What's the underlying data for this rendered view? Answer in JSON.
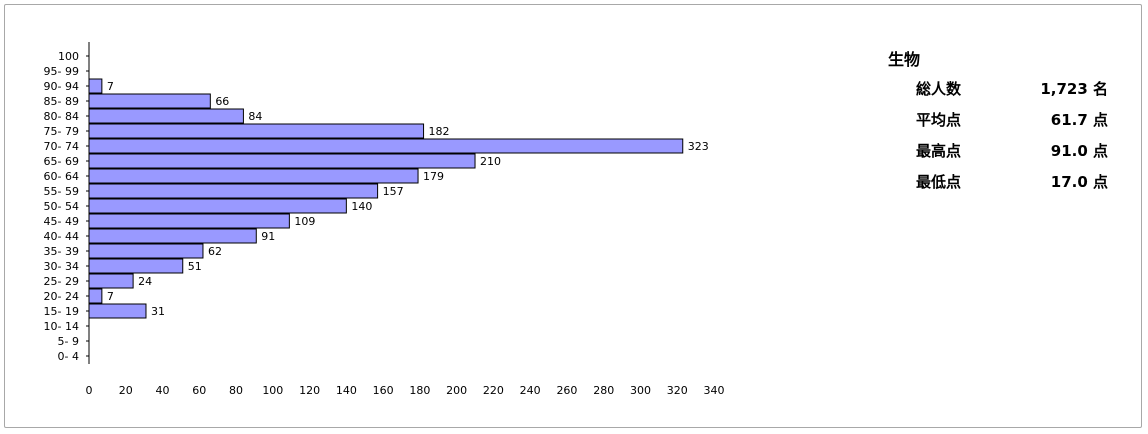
{
  "chart_data": {
    "type": "bar",
    "orientation": "horizontal",
    "categories": [
      "100",
      "95- 99",
      "90- 94",
      "85- 89",
      "80- 84",
      "75- 79",
      "70- 74",
      "65- 69",
      "60- 64",
      "55- 59",
      "50- 54",
      "45- 49",
      "40- 44",
      "35- 39",
      "30- 34",
      "25- 29",
      "20- 24",
      "15- 19",
      "10- 14",
      "5- 9",
      "0- 4"
    ],
    "values": [
      0,
      0,
      7,
      66,
      84,
      182,
      323,
      210,
      179,
      157,
      140,
      109,
      91,
      62,
      51,
      24,
      7,
      31,
      0,
      0,
      0
    ],
    "data_labels": [
      "",
      "",
      "7",
      "66",
      "84",
      "182",
      "323",
      "210",
      "179",
      "157",
      "140",
      "109",
      "91",
      "62",
      "51",
      "24",
      "7",
      "31",
      "",
      "",
      ""
    ],
    "xlim": [
      0,
      340
    ],
    "xticks": [
      0,
      20,
      40,
      60,
      80,
      100,
      120,
      140,
      160,
      180,
      200,
      220,
      240,
      260,
      280,
      300,
      320,
      340
    ],
    "grid": false,
    "colors": {
      "bar_fill": "#9999ff",
      "bar_stroke": "#000000"
    }
  },
  "stats": {
    "subject": "生物",
    "rows": [
      {
        "label": "総人数",
        "value": "1,723 名"
      },
      {
        "label": "平均点",
        "value": "61.7 点"
      },
      {
        "label": "最高点",
        "value": "91.0 点"
      },
      {
        "label": "最低点",
        "value": "17.0 点"
      }
    ]
  }
}
